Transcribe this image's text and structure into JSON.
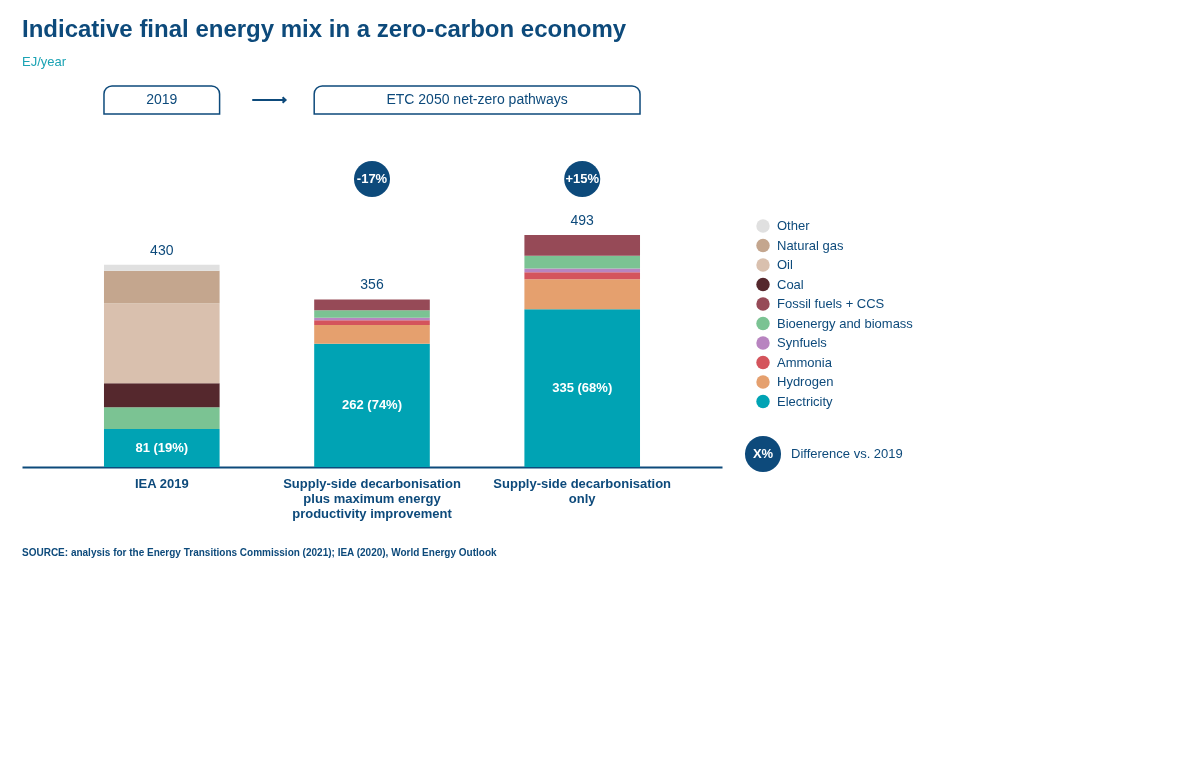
{
  "chart_data": {
    "type": "bar",
    "title": "Indicative final energy mix in a zero-carbon economy",
    "subtitle": "EJ/year",
    "categories": [
      "IEA 2019",
      "Supply-side decarbonisation plus maximum energy productivity improvement",
      "Supply-side decarbonisation only"
    ],
    "stacked": true,
    "legend": "right",
    "series": [
      {
        "name": "Electricity",
        "color": "#00a3b4",
        "values": [
          81,
          262,
          335
        ],
        "value_labels": [
          "81 (19%)",
          "262 (74%)",
          "335 (68%)"
        ]
      },
      {
        "name": "Hydrogen",
        "color": "#e5a06e",
        "values": [
          null,
          40,
          64
        ]
      },
      {
        "name": "Ammonia",
        "color": "#d4545c",
        "values": [
          null,
          10,
          15
        ]
      },
      {
        "name": "Synfuels",
        "color": "#b884c0",
        "values": [
          null,
          5,
          8
        ]
      },
      {
        "name": "Bioenergy and biomass",
        "color": "#7bc393",
        "values": [
          46,
          16,
          27
        ]
      },
      {
        "name": "Fossil fuels + CCS",
        "color": "#964a57",
        "values": [
          null,
          23,
          44
        ]
      },
      {
        "name": "Coal",
        "color": "#55282d",
        "values": [
          51,
          null,
          null
        ]
      },
      {
        "name": "Oil",
        "color": "#d9c0ae",
        "values": [
          170,
          null,
          null
        ]
      },
      {
        "name": "Natural gas",
        "color": "#c4a68e",
        "values": [
          69,
          null,
          null
        ]
      },
      {
        "name": "Other",
        "color": "#e0e0e0",
        "values": [
          13,
          null,
          null
        ]
      }
    ],
    "totals": [
      "430",
      "356",
      "493"
    ],
    "annotations": [
      "2019",
      "ETC 2050 net-zero pathways",
      "-17%",
      "+15%",
      "X%",
      "Difference vs. 2019",
      "SOURCE: analysis for the Energy Transitions Commission (2021); IEA (2020), World Energy Outlook"
    ]
  }
}
